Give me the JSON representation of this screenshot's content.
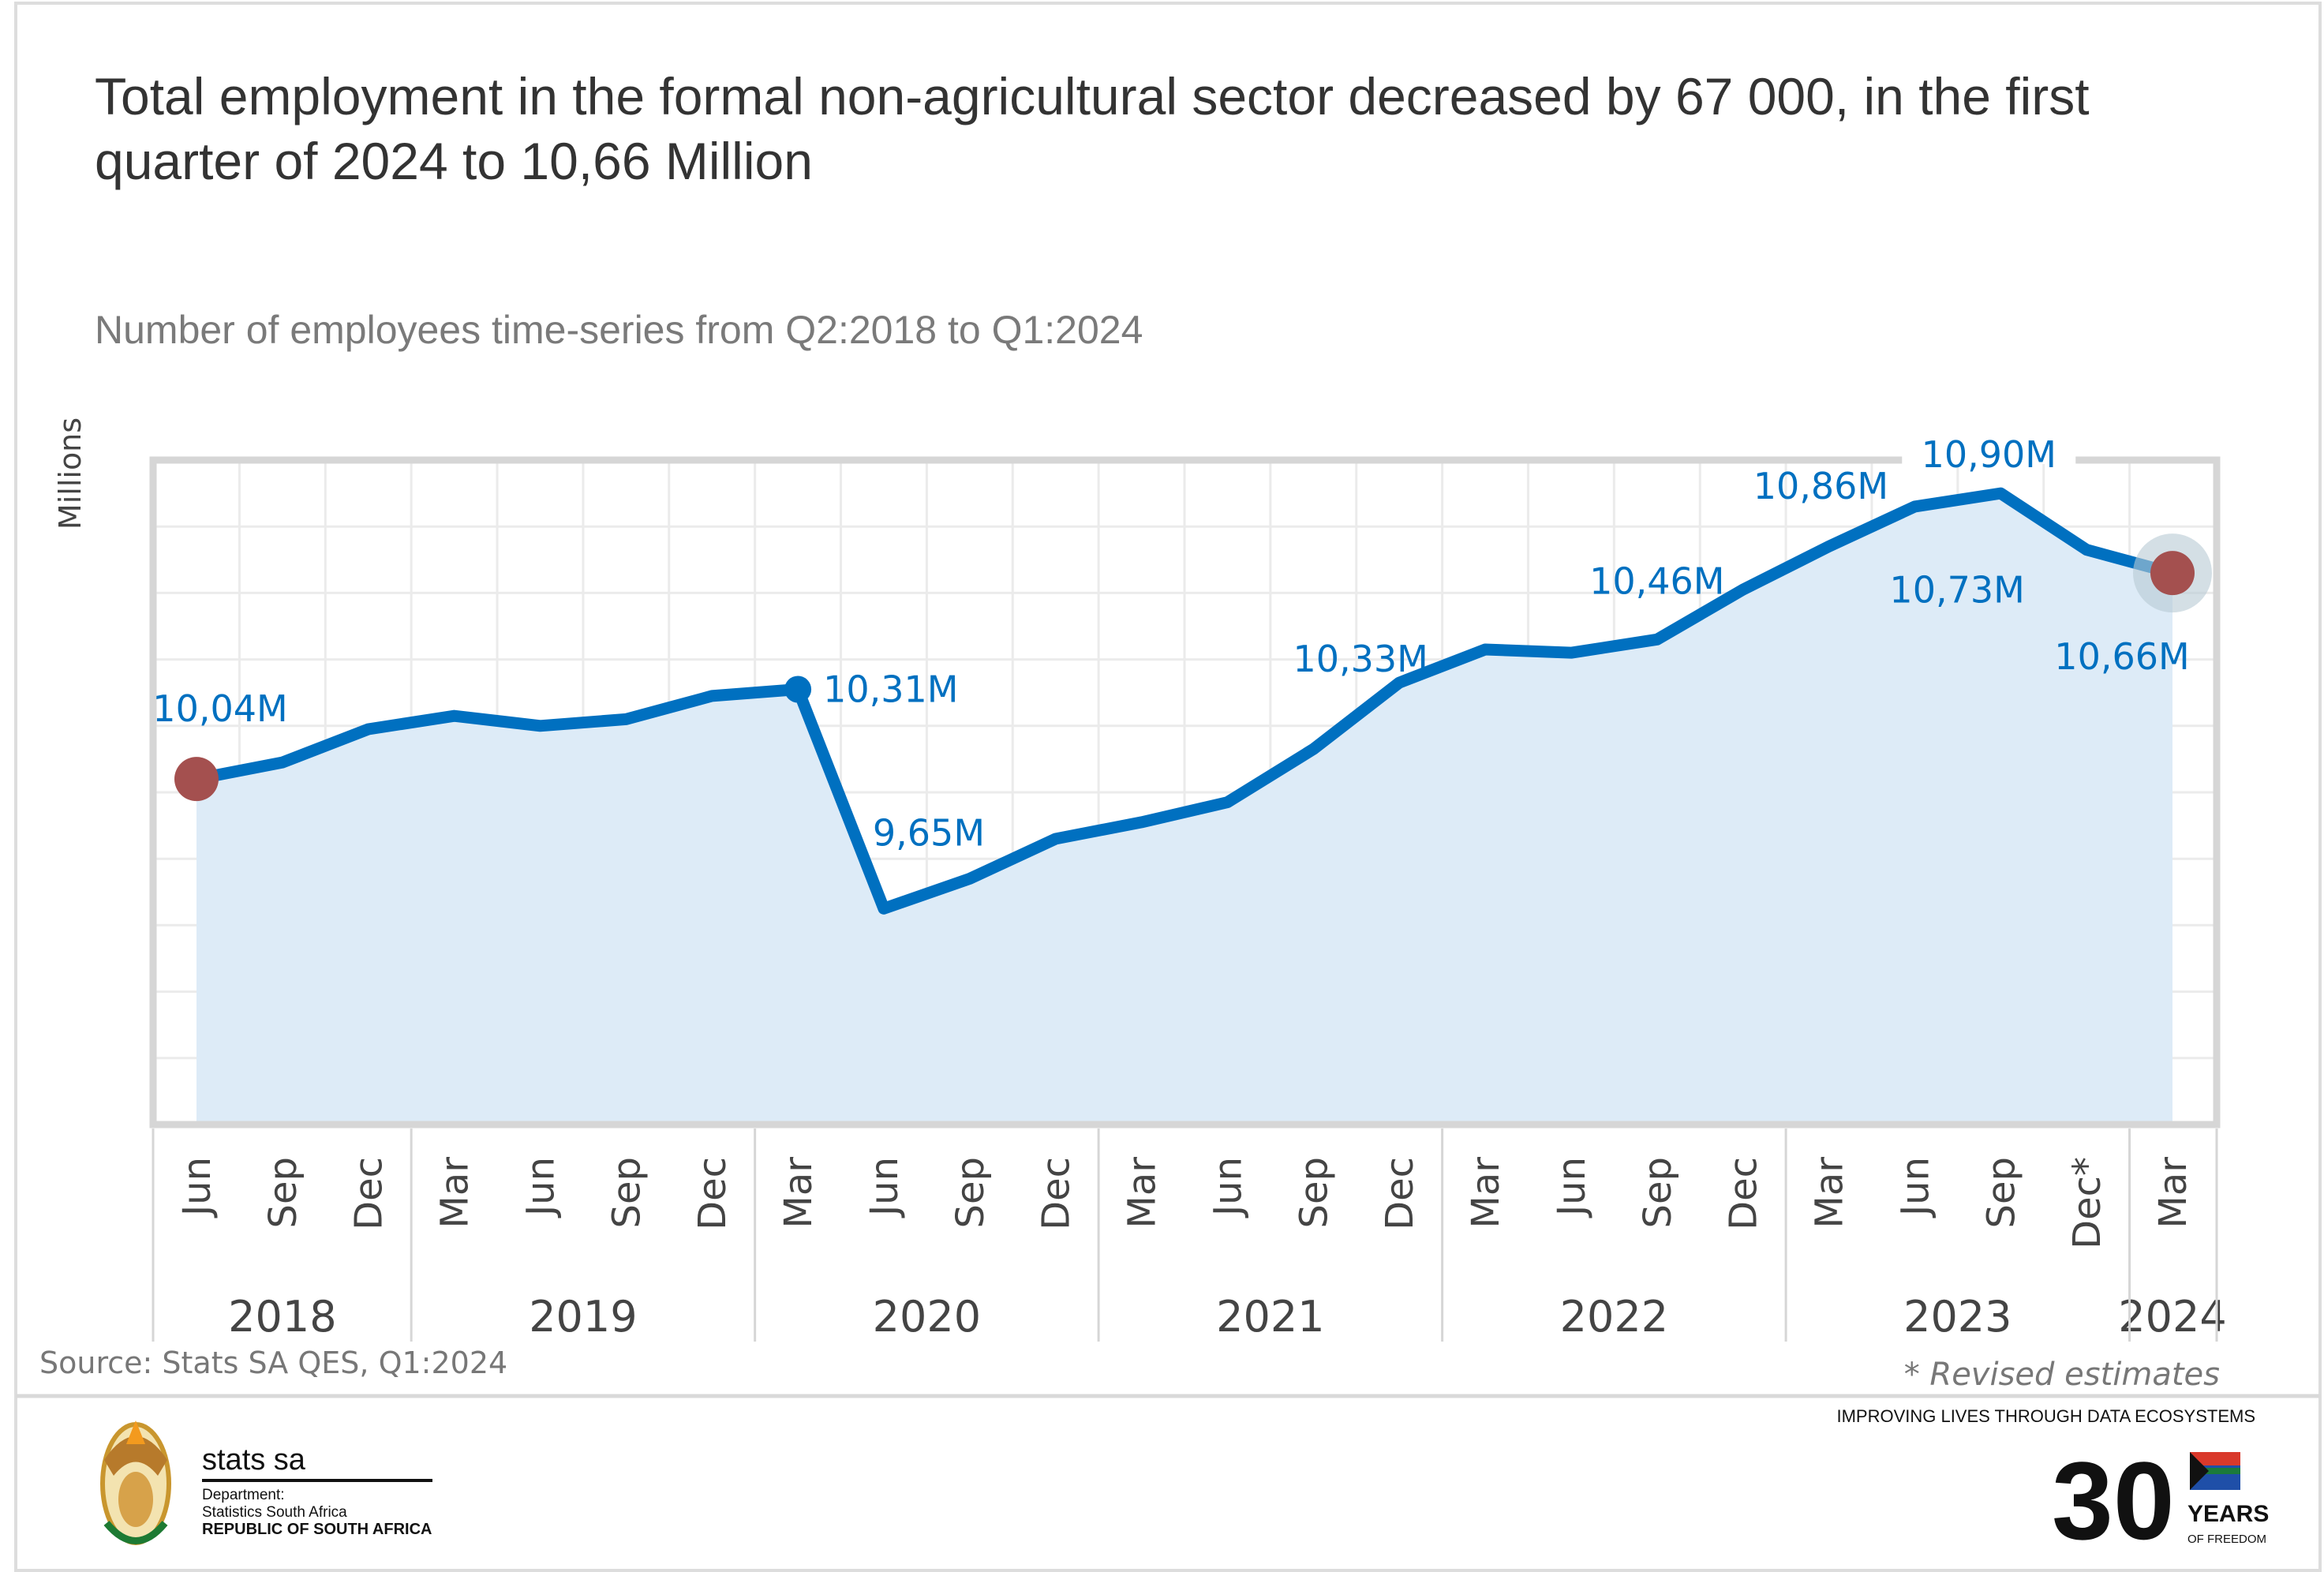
{
  "title_line1": "Total employment in the formal non-agricultural sector decreased by 67 000, in the first",
  "title_line2": "quarter of 2024 to 10,66 Million",
  "chart_data": {
    "type": "area",
    "title": "Total employment in the formal non-agricultural sector decreased by 67 000, in the first quarter of 2024 to 10,66 Million",
    "subtitle": "Number of employees time-series from Q2:2018 to Q1:2024",
    "ylabel": "Millions",
    "xlabel": "",
    "ylim": [
      9.0,
      11.0
    ],
    "y_grid_step": 0.2,
    "grid": true,
    "y_tick_labels_shown": false,
    "categories": [
      "Jun",
      "Sep",
      "Dec",
      "Mar",
      "Jun",
      "Sep",
      "Dec",
      "Mar",
      "Jun",
      "Sep",
      "Dec",
      "Mar",
      "Jun",
      "Sep",
      "Dec",
      "Mar",
      "Jun",
      "Sep",
      "Dec",
      "Mar",
      "Jun",
      "Sep",
      "Dec*",
      "Mar"
    ],
    "years": [
      {
        "label": "2018",
        "start": 0,
        "end": 2
      },
      {
        "label": "2019",
        "start": 3,
        "end": 6
      },
      {
        "label": "2020",
        "start": 7,
        "end": 10
      },
      {
        "label": "2021",
        "start": 11,
        "end": 14
      },
      {
        "label": "2022",
        "start": 15,
        "end": 18
      },
      {
        "label": "2023",
        "start": 19,
        "end": 22
      },
      {
        "label": "2024",
        "start": 23,
        "end": 23
      }
    ],
    "values": [
      10.04,
      10.09,
      10.19,
      10.23,
      10.2,
      10.22,
      10.29,
      10.31,
      9.65,
      9.74,
      9.86,
      9.91,
      9.97,
      10.13,
      10.33,
      10.43,
      10.42,
      10.46,
      10.61,
      10.74,
      10.86,
      10.9,
      10.73,
      10.66
    ],
    "data_labels": [
      {
        "index": 0,
        "text": "10,04M"
      },
      {
        "index": 7,
        "text": "10,31M"
      },
      {
        "index": 8,
        "text": "9,65M"
      },
      {
        "index": 14,
        "text": "10,33M"
      },
      {
        "index": 17,
        "text": "10,46M"
      },
      {
        "index": 20,
        "text": "10,86M"
      },
      {
        "index": 21,
        "text": "10,90M"
      },
      {
        "index": 22,
        "text": "10,73M"
      },
      {
        "index": 23,
        "text": "10,66M"
      }
    ],
    "highlighted_points": [
      0,
      23
    ],
    "colors": {
      "line": "#0070C0",
      "area": "#DDEBF7",
      "highlight": "#A4504F",
      "label": "#0070C0"
    }
  },
  "footer": {
    "source": "Source: Stats SA QES, Q1:2024",
    "note": "* Revised estimates",
    "tagline": "IMPROVING LIVES THROUGH DATA ECOSYSTEMS",
    "org_name": "stats sa",
    "dept_label": "Department:",
    "dept_name": "Statistics South Africa",
    "country": "REPUBLIC OF SOUTH AFRICA",
    "badge_number": "30",
    "badge_years": "YEARS",
    "badge_freedom": "OF FREEDOM"
  }
}
